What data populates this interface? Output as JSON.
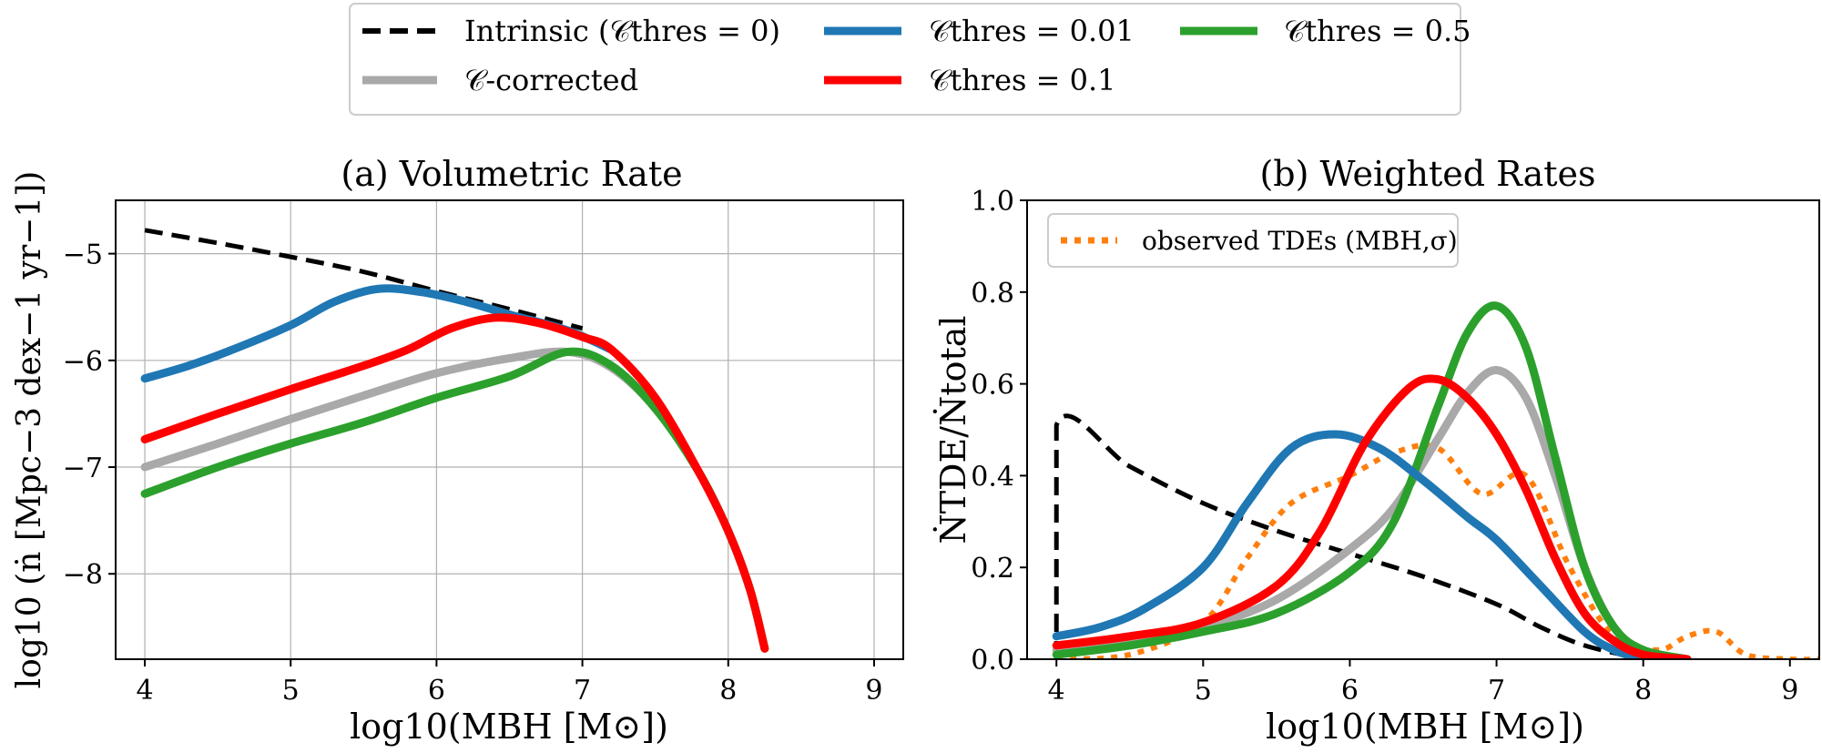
{
  "legend": {
    "entries": [
      {
        "key": "intrinsic",
        "label": "Intrinsic (𝒞thres = 0)",
        "color": "#000000",
        "style": "dashed"
      },
      {
        "key": "corrected",
        "label": "𝒞-corrected",
        "color": "#a9a9a9",
        "style": "solid"
      },
      {
        "key": "c001",
        "label": "𝒞thres = 0.01",
        "color": "#1f77b4",
        "style": "solid"
      },
      {
        "key": "c01",
        "label": "𝒞thres = 0.1",
        "color": "#ff0000",
        "style": "solid"
      },
      {
        "key": "c05",
        "label": "𝒞thres = 0.5",
        "color": "#2ca02c",
        "style": "solid"
      }
    ]
  },
  "chart_data": [
    {
      "type": "line",
      "title": "(a) Volumetric Rate",
      "xlabel": "log10(MBH [M⊙])",
      "ylabel": "log10 (ṅ [Mpc−3 dex−1 yr−1])",
      "xlim": [
        3.8,
        9.2
      ],
      "ylim": [
        -8.8,
        -4.5
      ],
      "xticks": [
        "4",
        "5",
        "6",
        "7",
        "8",
        "9"
      ],
      "yticks": [
        "−5",
        "−6",
        "−7",
        "−8"
      ],
      "ytick_values": [
        -5,
        -6,
        -7,
        -8
      ],
      "grid": true,
      "series": [
        {
          "key": "intrinsic",
          "color": "#000000",
          "style": "dashed",
          "x": [
            4.0,
            4.5,
            5.0,
            5.5,
            6.0,
            6.5,
            7.0
          ],
          "y": [
            -4.78,
            -4.9,
            -5.03,
            -5.17,
            -5.35,
            -5.52,
            -5.7
          ]
        },
        {
          "key": "corrected",
          "color": "#a9a9a9",
          "style": "solid",
          "x": [
            4.0,
            4.5,
            5.0,
            5.5,
            6.0,
            6.5,
            6.9,
            7.2,
            7.5,
            7.8,
            8.0,
            8.15,
            8.25
          ],
          "y": [
            -7.0,
            -6.78,
            -6.55,
            -6.33,
            -6.12,
            -5.98,
            -5.92,
            -6.07,
            -6.45,
            -7.05,
            -7.6,
            -8.15,
            -8.7
          ]
        },
        {
          "key": "c05",
          "color": "#2ca02c",
          "style": "solid",
          "x": [
            4.0,
            4.5,
            5.0,
            5.5,
            6.0,
            6.5,
            6.9,
            7.2,
            7.5,
            7.8,
            8.0,
            8.15,
            8.25
          ],
          "y": [
            -7.25,
            -7.0,
            -6.78,
            -6.58,
            -6.35,
            -6.15,
            -5.92,
            -6.05,
            -6.45,
            -7.05,
            -7.6,
            -8.15,
            -8.7
          ]
        },
        {
          "key": "c001",
          "color": "#1f77b4",
          "style": "solid",
          "x": [
            4.0,
            4.3,
            4.6,
            5.0,
            5.3,
            5.6,
            5.9,
            6.2,
            6.5,
            6.9,
            7.2
          ],
          "y": [
            -6.17,
            -6.05,
            -5.9,
            -5.67,
            -5.45,
            -5.33,
            -5.36,
            -5.45,
            -5.57,
            -5.72,
            -5.9
          ]
        },
        {
          "key": "c01",
          "color": "#ff0000",
          "style": "solid",
          "x": [
            4.0,
            4.5,
            5.0,
            5.5,
            5.8,
            6.1,
            6.4,
            6.7,
            7.0,
            7.2,
            7.5,
            7.8,
            8.0,
            8.15,
            8.25
          ],
          "y": [
            -6.74,
            -6.5,
            -6.27,
            -6.05,
            -5.9,
            -5.7,
            -5.6,
            -5.65,
            -5.78,
            -5.9,
            -6.35,
            -7.05,
            -7.6,
            -8.15,
            -8.7
          ]
        }
      ]
    },
    {
      "type": "line",
      "title": "(b) Weighted Rates",
      "xlabel": "log10(MBH [M⊙])",
      "ylabel": "ṄTDE/Ṅtotal",
      "xlim": [
        3.8,
        9.2
      ],
      "ylim": [
        0.0,
        1.0
      ],
      "xticks": [
        "4",
        "5",
        "6",
        "7",
        "8",
        "9"
      ],
      "yticks": [
        "0.0",
        "0.2",
        "0.4",
        "0.6",
        "0.8",
        "1.0"
      ],
      "ytick_values": [
        0.0,
        0.2,
        0.4,
        0.6,
        0.8,
        1.0
      ],
      "grid": false,
      "legend": {
        "label": "observed TDEs (MBH,σ)",
        "color": "#ff7f0e",
        "style": "dotted",
        "placement": "upper-left"
      },
      "series": [
        {
          "key": "intrinsic",
          "color": "#000000",
          "style": "dashed",
          "x": [
            4.0,
            4.0,
            4.5,
            5.0,
            5.5,
            6.0,
            6.5,
            7.0,
            7.3,
            7.6,
            8.0
          ],
          "y": [
            0.0,
            0.51,
            0.42,
            0.34,
            0.28,
            0.23,
            0.18,
            0.12,
            0.07,
            0.03,
            0.0
          ]
        },
        {
          "key": "observed",
          "color": "#ff7f0e",
          "style": "dotted",
          "x": [
            4.0,
            4.5,
            5.0,
            5.3,
            5.6,
            6.0,
            6.3,
            6.6,
            6.9,
            7.2,
            7.5,
            7.8,
            8.1,
            8.3,
            8.5,
            8.7,
            9.0,
            9.2
          ],
          "y": [
            0.0,
            0.01,
            0.08,
            0.22,
            0.34,
            0.4,
            0.45,
            0.46,
            0.36,
            0.4,
            0.2,
            0.05,
            0.02,
            0.05,
            0.06,
            0.01,
            0.0,
            0.0
          ]
        },
        {
          "key": "corrected",
          "color": "#a9a9a9",
          "style": "solid",
          "x": [
            4.0,
            4.5,
            5.0,
            5.5,
            6.0,
            6.3,
            6.6,
            6.8,
            7.0,
            7.2,
            7.4,
            7.6,
            7.8,
            8.0,
            8.3
          ],
          "y": [
            0.02,
            0.04,
            0.07,
            0.13,
            0.24,
            0.33,
            0.48,
            0.58,
            0.63,
            0.57,
            0.4,
            0.2,
            0.07,
            0.02,
            0.0
          ]
        },
        {
          "key": "c05",
          "color": "#2ca02c",
          "style": "solid",
          "x": [
            4.0,
            4.5,
            5.0,
            5.5,
            6.0,
            6.3,
            6.6,
            6.8,
            7.0,
            7.2,
            7.4,
            7.6,
            7.8,
            8.0,
            8.3
          ],
          "y": [
            0.01,
            0.03,
            0.06,
            0.1,
            0.19,
            0.3,
            0.55,
            0.71,
            0.77,
            0.68,
            0.44,
            0.2,
            0.07,
            0.02,
            0.0
          ]
        },
        {
          "key": "c001",
          "color": "#1f77b4",
          "style": "solid",
          "x": [
            4.0,
            4.3,
            4.6,
            5.0,
            5.3,
            5.6,
            5.9,
            6.2,
            6.5,
            6.8,
            7.0,
            7.3,
            7.6,
            7.8,
            8.0
          ],
          "y": [
            0.05,
            0.07,
            0.11,
            0.2,
            0.34,
            0.46,
            0.49,
            0.46,
            0.39,
            0.31,
            0.26,
            0.16,
            0.06,
            0.02,
            0.0
          ]
        },
        {
          "key": "c01",
          "color": "#ff0000",
          "style": "solid",
          "x": [
            4.0,
            4.5,
            5.0,
            5.5,
            5.8,
            6.1,
            6.4,
            6.6,
            6.8,
            7.0,
            7.2,
            7.4,
            7.6,
            7.8,
            8.0,
            8.3
          ],
          "y": [
            0.03,
            0.05,
            0.08,
            0.16,
            0.28,
            0.47,
            0.59,
            0.61,
            0.57,
            0.49,
            0.37,
            0.22,
            0.1,
            0.04,
            0.01,
            0.0
          ]
        }
      ]
    }
  ]
}
